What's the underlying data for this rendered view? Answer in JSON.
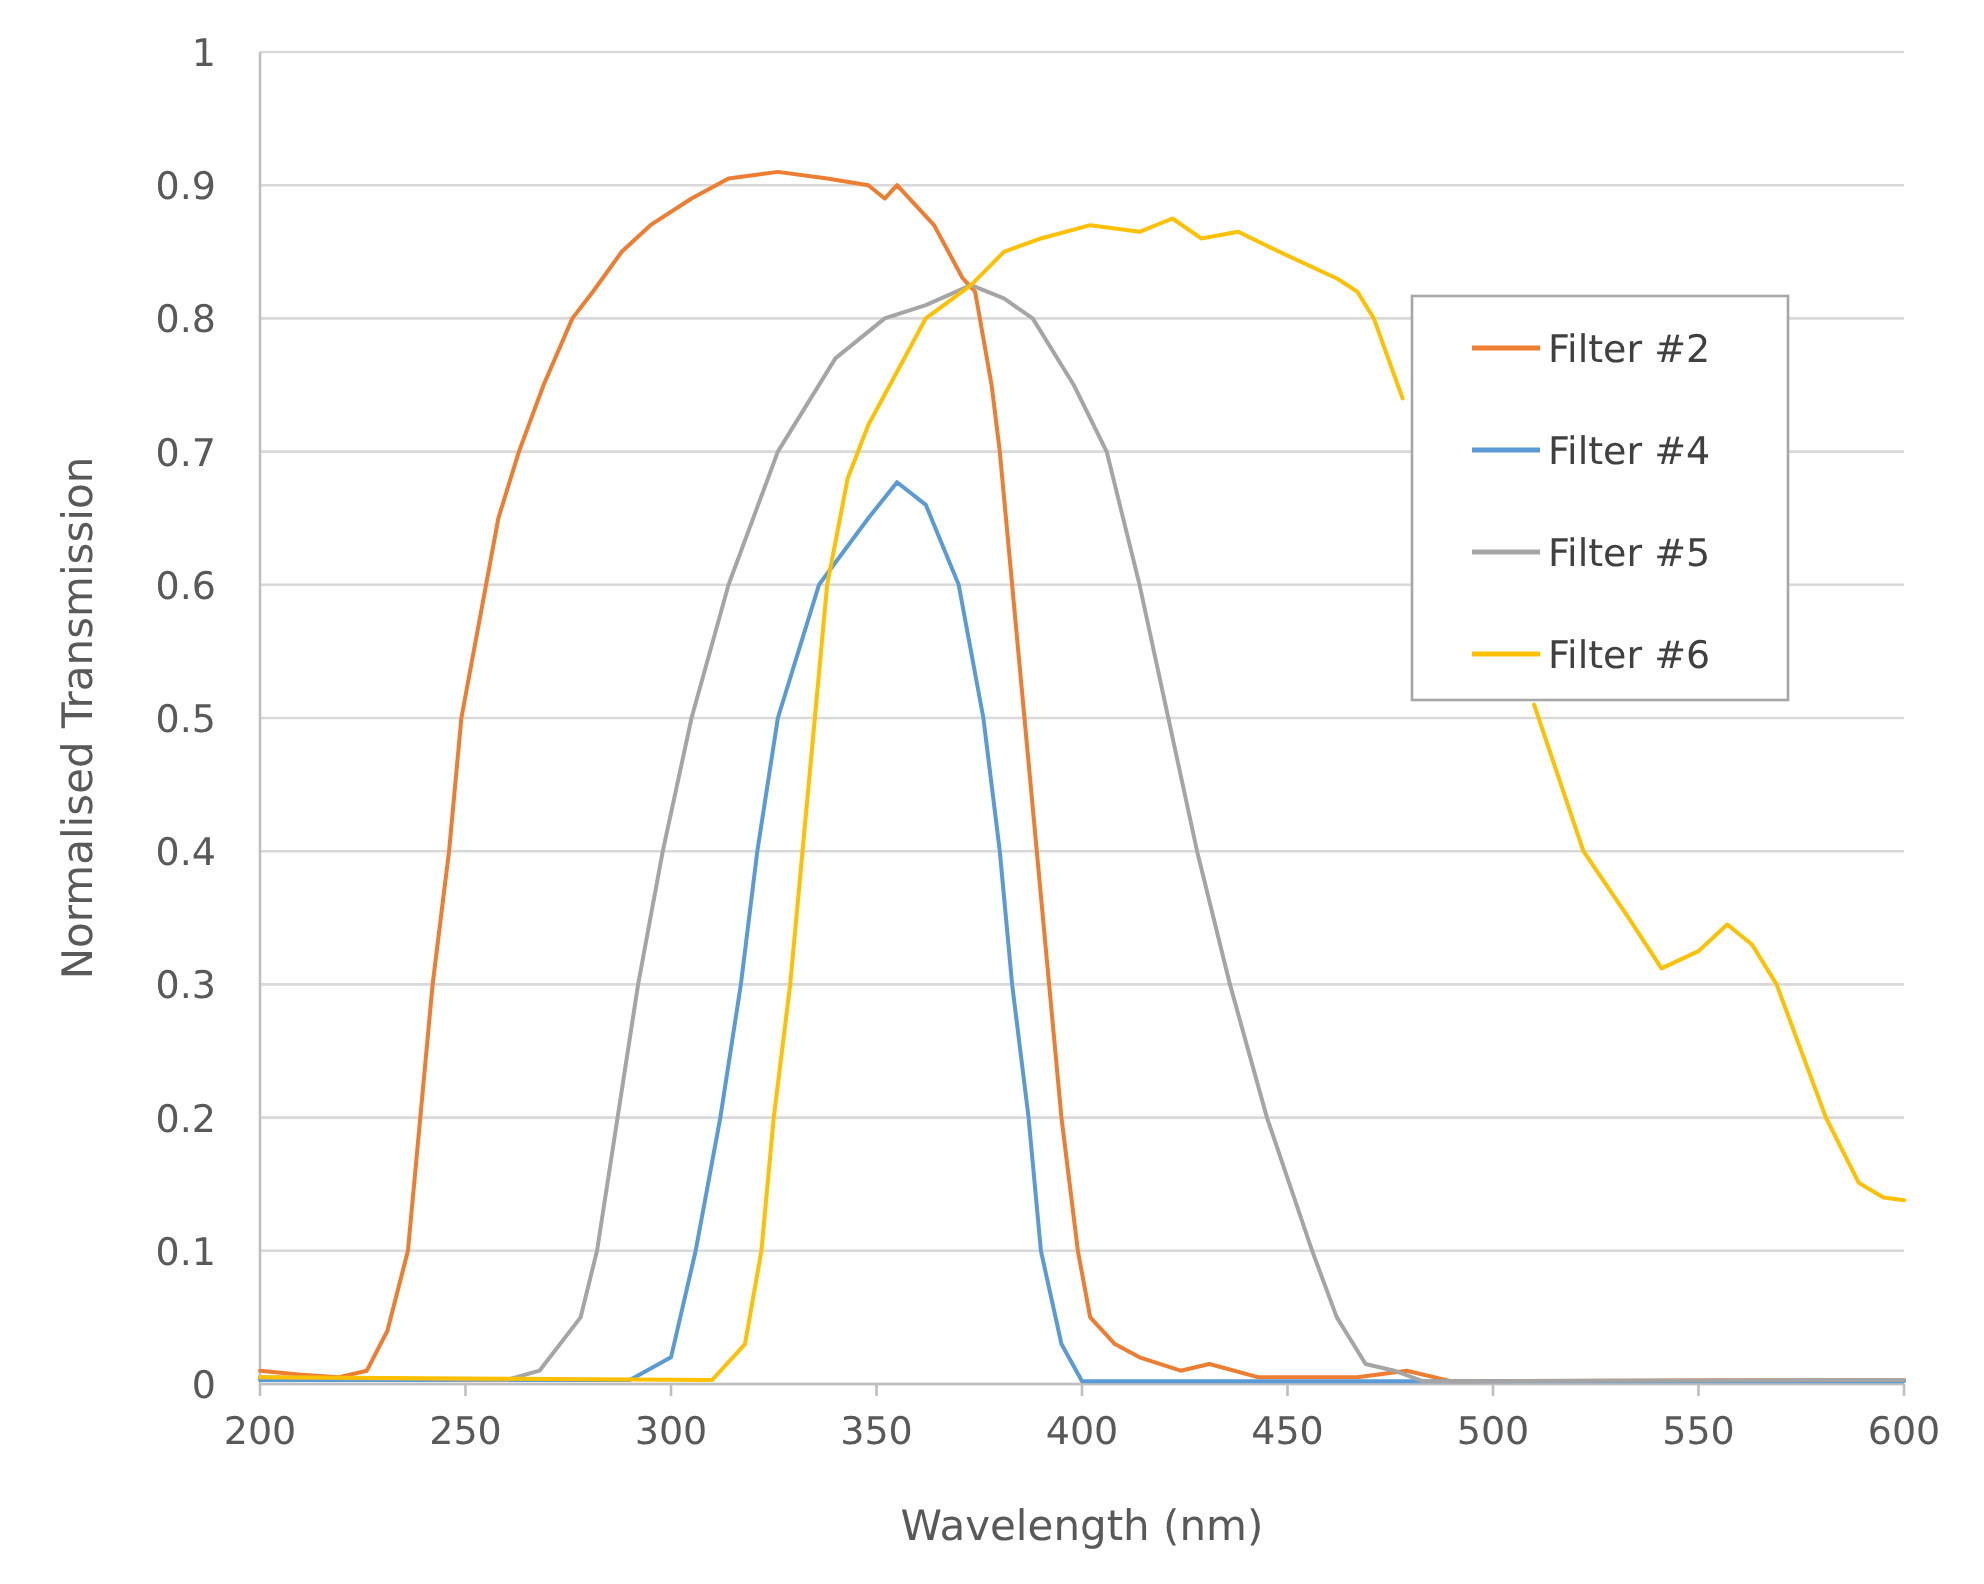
{
  "chart_data": {
    "type": "line",
    "xlabel": "Wavelength (nm)",
    "ylabel": "Normalised Transmission",
    "xlim": [
      200,
      600
    ],
    "xticks": [
      200,
      250,
      300,
      350,
      400,
      450,
      500,
      550,
      600
    ],
    "ylim": [
      0,
      1
    ],
    "yticks": [
      0,
      0.1,
      0.2,
      0.3,
      0.4,
      0.5,
      0.6,
      0.7,
      0.8,
      0.9,
      1
    ],
    "grid": "y",
    "legend": "right",
    "marker": "none",
    "line_style": "solid",
    "series": [
      {
        "name": "Filter #2",
        "color": "#ed7d31",
        "x": [
          200,
          210,
          219,
          226,
          231,
          236,
          239,
          242,
          246,
          249,
          255,
          258,
          263,
          269,
          276,
          281,
          288,
          295,
          305,
          314,
          326,
          338,
          348,
          352,
          355,
          364,
          371,
          374,
          378,
          380,
          383,
          386,
          389,
          392,
          395,
          399,
          402,
          408,
          414,
          424,
          431,
          443,
          467,
          479,
          490,
          600
        ],
        "values": [
          0.01,
          0.007,
          0.005,
          0.01,
          0.04,
          0.1,
          0.2,
          0.3,
          0.4,
          0.5,
          0.6,
          0.65,
          0.7,
          0.75,
          0.8,
          0.82,
          0.85,
          0.87,
          0.89,
          0.905,
          0.91,
          0.905,
          0.9,
          0.89,
          0.9,
          0.87,
          0.83,
          0.82,
          0.75,
          0.7,
          0.6,
          0.5,
          0.4,
          0.3,
          0.2,
          0.1,
          0.05,
          0.03,
          0.02,
          0.01,
          0.015,
          0.005,
          0.005,
          0.01,
          0.002,
          0.003
        ]
      },
      {
        "name": "Filter #4",
        "color": "#5b9bd5",
        "x": [
          200,
          290,
          300,
          306,
          312,
          317,
          321,
          326,
          336,
          348,
          355,
          362,
          370,
          376,
          380,
          383,
          387,
          390,
          395,
          400,
          600
        ],
        "values": [
          0.003,
          0.003,
          0.02,
          0.1,
          0.2,
          0.3,
          0.4,
          0.5,
          0.6,
          0.65,
          0.677,
          0.66,
          0.6,
          0.5,
          0.4,
          0.3,
          0.2,
          0.1,
          0.03,
          0.002,
          0.002
        ]
      },
      {
        "name": "Filter #5",
        "color": "#a5a5a5",
        "x": [
          200,
          260,
          268,
          278,
          282,
          287,
          292,
          298,
          305,
          314,
          326,
          340,
          352,
          362,
          373,
          381,
          388,
          398,
          406,
          414,
          421,
          428,
          436,
          445,
          456,
          462,
          469,
          476,
          483,
          600
        ],
        "values": [
          0.005,
          0.003,
          0.01,
          0.05,
          0.1,
          0.2,
          0.3,
          0.4,
          0.5,
          0.6,
          0.7,
          0.77,
          0.8,
          0.81,
          0.825,
          0.815,
          0.8,
          0.75,
          0.7,
          0.6,
          0.5,
          0.4,
          0.3,
          0.2,
          0.1,
          0.05,
          0.015,
          0.01,
          0.002,
          0.003
        ]
      },
      {
        "name": "Filter #6",
        "color": "#ffc000",
        "x": [
          200,
          310,
          318,
          322,
          325,
          329,
          332,
          335,
          338,
          343,
          348,
          355,
          362,
          373,
          381,
          390,
          402,
          414,
          422,
          429,
          438,
          448,
          462,
          467,
          471,
          478,
          495,
          510,
          522,
          533,
          541,
          550,
          557,
          563,
          569,
          581,
          589,
          595,
          600
        ],
        "values": [
          0.005,
          0.003,
          0.03,
          0.1,
          0.2,
          0.3,
          0.4,
          0.5,
          0.6,
          0.68,
          0.72,
          0.76,
          0.8,
          0.825,
          0.85,
          0.86,
          0.87,
          0.865,
          0.875,
          0.86,
          0.865,
          0.85,
          0.83,
          0.82,
          0.8,
          0.74,
          null,
          0.51,
          0.4,
          0.35,
          0.312,
          0.325,
          0.345,
          0.33,
          0.3,
          0.2,
          0.151,
          0.14,
          0.138
        ]
      }
    ]
  }
}
